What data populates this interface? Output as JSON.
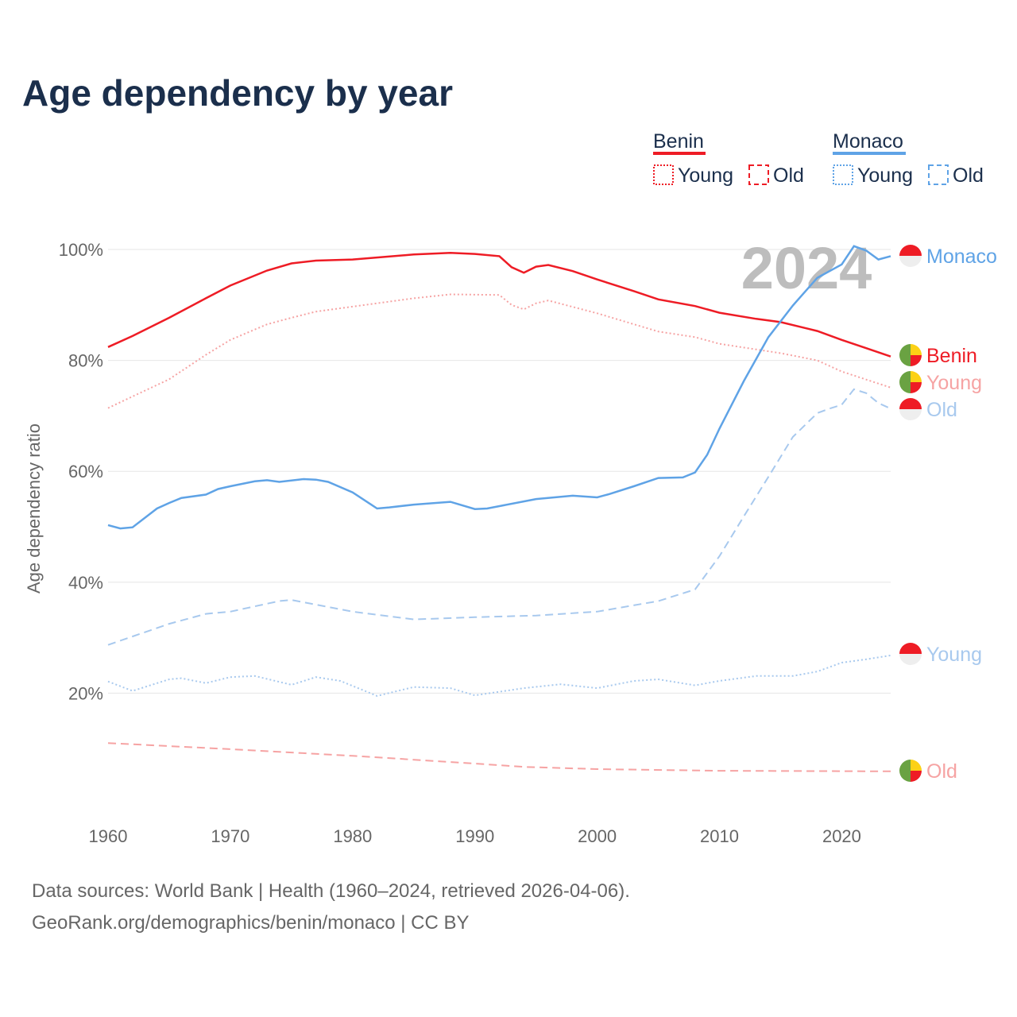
{
  "title": "Age dependency by year",
  "sources": [
    "Data sources: World Bank | Health (1960–2024, retrieved 2026-04-06).",
    "GeoRank.org/demographics/benin/monaco | CC BY"
  ],
  "year_label": "2024",
  "colors": {
    "benin": "#ee1c25",
    "benin_light": "#f6a3a3",
    "monaco": "#5fa3e6",
    "monaco_light": "#a8c9ee",
    "text": "#1b2f4c"
  },
  "legend": {
    "groups": [
      {
        "name": "Benin",
        "color": "#ee1c25",
        "items": [
          "Young",
          "Old"
        ]
      },
      {
        "name": "Monaco",
        "color": "#5fa3e6",
        "items": [
          "Young",
          "Old"
        ]
      }
    ]
  },
  "end_labels": [
    "Monaco",
    "Benin",
    "Young",
    "Old",
    "Young",
    "Old"
  ],
  "chart_data": {
    "type": "line",
    "title": "Age dependency by year",
    "xlabel": "",
    "ylabel": "Age dependency ratio",
    "xlim": [
      1960,
      2024
    ],
    "ylim": [
      0,
      100
    ],
    "x_ticks": [
      "1960",
      "1970",
      "1980",
      "1990",
      "2000",
      "2010",
      "2020"
    ],
    "y_ticks": [
      "20%",
      "40%",
      "60%",
      "80%",
      "100%"
    ],
    "grid": true,
    "legend_position": "top-right",
    "series": [
      {
        "name": "Benin",
        "style": "solid",
        "color": "#ee1c25",
        "points": [
          [
            1960,
            82.4
          ],
          [
            1962,
            84.4
          ],
          [
            1965,
            87.7
          ],
          [
            1968,
            91.2
          ],
          [
            1970,
            93.5
          ],
          [
            1973,
            96.2
          ],
          [
            1975,
            97.5
          ],
          [
            1977,
            98
          ],
          [
            1980,
            98.2
          ],
          [
            1985,
            99.1
          ],
          [
            1988,
            99.4
          ],
          [
            1990,
            99.2
          ],
          [
            1992,
            98.8
          ],
          [
            1993,
            96.8
          ],
          [
            1994,
            95.8
          ],
          [
            1995,
            96.9
          ],
          [
            1996,
            97.2
          ],
          [
            1998,
            96.1
          ],
          [
            2000,
            94.6
          ],
          [
            2003,
            92.5
          ],
          [
            2005,
            91
          ],
          [
            2008,
            89.8
          ],
          [
            2010,
            88.6
          ],
          [
            2013,
            87.5
          ],
          [
            2015,
            86.9
          ],
          [
            2018,
            85.3
          ],
          [
            2020,
            83.7
          ],
          [
            2022,
            82.2
          ],
          [
            2024,
            80.7
          ]
        ]
      },
      {
        "name": "Benin Young",
        "style": "dotted",
        "color": "#f6a3a3",
        "points": [
          [
            1960,
            71.4
          ],
          [
            1962,
            73.5
          ],
          [
            1965,
            76.6
          ],
          [
            1968,
            81
          ],
          [
            1970,
            83.7
          ],
          [
            1973,
            86.5
          ],
          [
            1975,
            87.7
          ],
          [
            1977,
            88.8
          ],
          [
            1980,
            89.7
          ],
          [
            1985,
            91.2
          ],
          [
            1988,
            91.9
          ],
          [
            1992,
            91.8
          ],
          [
            1993,
            90
          ],
          [
            1994,
            89.2
          ],
          [
            1995,
            90.3
          ],
          [
            1996,
            90.8
          ],
          [
            2000,
            88.5
          ],
          [
            2005,
            85.2
          ],
          [
            2008,
            84.2
          ],
          [
            2010,
            83
          ],
          [
            2015,
            81.3
          ],
          [
            2018,
            80
          ],
          [
            2020,
            78
          ],
          [
            2024,
            75.1
          ]
        ]
      },
      {
        "name": "Benin Old",
        "style": "dashed",
        "color": "#f6a3a3",
        "points": [
          [
            1960,
            11
          ],
          [
            1970,
            9.9
          ],
          [
            1980,
            8.7
          ],
          [
            1990,
            7.3
          ],
          [
            1994,
            6.7
          ],
          [
            2000,
            6.3
          ],
          [
            2010,
            6.0
          ],
          [
            2024,
            5.9
          ]
        ]
      },
      {
        "name": "Monaco",
        "style": "solid",
        "color": "#5fa3e6",
        "points": [
          [
            1960,
            50.3
          ],
          [
            1961,
            49.7
          ],
          [
            1962,
            49.9
          ],
          [
            1964,
            53.3
          ],
          [
            1965,
            54.3
          ],
          [
            1966,
            55.2
          ],
          [
            1968,
            55.8
          ],
          [
            1969,
            56.8
          ],
          [
            1970,
            57.3
          ],
          [
            1972,
            58.2
          ],
          [
            1973,
            58.4
          ],
          [
            1974,
            58.1
          ],
          [
            1976,
            58.6
          ],
          [
            1977,
            58.5
          ],
          [
            1978,
            58.1
          ],
          [
            1980,
            56.2
          ],
          [
            1982,
            53.3
          ],
          [
            1983,
            53.5
          ],
          [
            1985,
            54
          ],
          [
            1988,
            54.5
          ],
          [
            1990,
            53.2
          ],
          [
            1991,
            53.3
          ],
          [
            1995,
            55
          ],
          [
            1998,
            55.6
          ],
          [
            2000,
            55.3
          ],
          [
            2001,
            55.9
          ],
          [
            2003,
            57.3
          ],
          [
            2005,
            58.8
          ],
          [
            2007,
            58.9
          ],
          [
            2008,
            59.8
          ],
          [
            2009,
            63
          ],
          [
            2010,
            67.7
          ],
          [
            2012,
            76.3
          ],
          [
            2014,
            84.2
          ],
          [
            2016,
            89.9
          ],
          [
            2018,
            94.9
          ],
          [
            2020,
            97.3
          ],
          [
            2021,
            100.6
          ],
          [
            2022,
            99.8
          ],
          [
            2023,
            98.2
          ],
          [
            2024,
            98.8
          ]
        ]
      },
      {
        "name": "Monaco Old",
        "style": "dashed",
        "color": "#a8c9ee",
        "points": [
          [
            1960,
            28.7
          ],
          [
            1965,
            32.5
          ],
          [
            1968,
            34.3
          ],
          [
            1970,
            34.7
          ],
          [
            1974,
            36.6
          ],
          [
            1975,
            36.8
          ],
          [
            1980,
            34.7
          ],
          [
            1985,
            33.3
          ],
          [
            1990,
            33.7
          ],
          [
            1995,
            34
          ],
          [
            2000,
            34.7
          ],
          [
            2005,
            36.6
          ],
          [
            2008,
            38.7
          ],
          [
            2010,
            44.7
          ],
          [
            2012,
            51.9
          ],
          [
            2014,
            59
          ],
          [
            2016,
            66.2
          ],
          [
            2018,
            70.5
          ],
          [
            2019,
            71.3
          ],
          [
            2020,
            72
          ],
          [
            2021,
            74.8
          ],
          [
            2022,
            74.1
          ],
          [
            2023,
            72.3
          ],
          [
            2024,
            71.3
          ]
        ]
      },
      {
        "name": "Monaco Young",
        "style": "dotted",
        "color": "#a8c9ee",
        "points": [
          [
            1960,
            22.1
          ],
          [
            1962,
            20.4
          ],
          [
            1965,
            22.5
          ],
          [
            1966,
            22.7
          ],
          [
            1968,
            21.8
          ],
          [
            1970,
            22.9
          ],
          [
            1972,
            23.1
          ],
          [
            1975,
            21.5
          ],
          [
            1977,
            22.9
          ],
          [
            1979,
            22.2
          ],
          [
            1982,
            19.5
          ],
          [
            1985,
            21.1
          ],
          [
            1988,
            20.9
          ],
          [
            1990,
            19.6
          ],
          [
            1994,
            20.9
          ],
          [
            1997,
            21.6
          ],
          [
            2000,
            20.9
          ],
          [
            2003,
            22.2
          ],
          [
            2005,
            22.5
          ],
          [
            2008,
            21.4
          ],
          [
            2010,
            22.2
          ],
          [
            2013,
            23.1
          ],
          [
            2016,
            23.1
          ],
          [
            2018,
            23.9
          ],
          [
            2020,
            25.5
          ],
          [
            2022,
            26.1
          ],
          [
            2024,
            26.8
          ]
        ]
      }
    ]
  }
}
